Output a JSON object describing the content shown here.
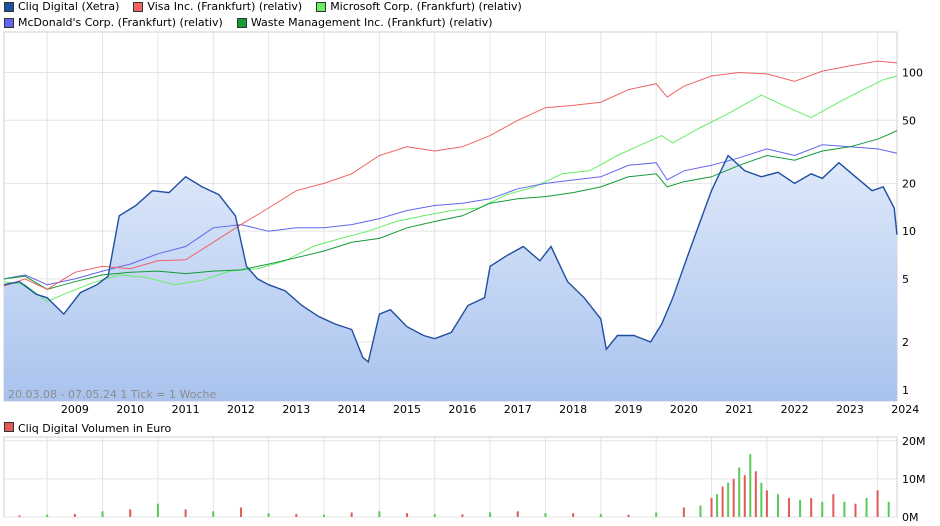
{
  "legend": [
    {
      "label": "Cliq Digital (Xetra)",
      "color": "#1f4fa0"
    },
    {
      "label": "Visa Inc. (Frankfurt) (relativ)",
      "color": "#f06464"
    },
    {
      "label": "Microsoft Corp. (Frankfurt) (relativ)",
      "color": "#66ee66"
    },
    {
      "label": "McDonald's Corp. (Frankfurt) (relativ)",
      "color": "#6464f0"
    },
    {
      "label": "Waste Management Inc. (Frankfurt) (relativ)",
      "color": "#139a39"
    }
  ],
  "range_label": "20.03.08 - 07.05.24",
  "tick_label": "1 Tick = 1 Woche",
  "volume_legend": {
    "label": "Cliq Digital Volumen in Euro",
    "color": "#e05a5a"
  },
  "chart_data": [
    {
      "type": "line",
      "scale": "log",
      "x_ticks": [
        "2009",
        "2010",
        "2011",
        "2012",
        "2013",
        "2014",
        "2015",
        "2016",
        "2017",
        "2018",
        "2019",
        "2020",
        "2021",
        "2022",
        "2023",
        "2024"
      ],
      "y_ticks": [
        1,
        2,
        5,
        10,
        20,
        50,
        100
      ],
      "ylim": [
        0.85,
        180
      ],
      "xlim": [
        2008.22,
        2024.35
      ],
      "grid": true,
      "legend_position": "top",
      "series": [
        {
          "name": "Cliq Digital (Xetra)",
          "color": "#1f4fa0",
          "fill": true,
          "x": [
            2008.22,
            2008.5,
            2008.8,
            2009.0,
            2009.3,
            2009.6,
            2009.9,
            2010.1,
            2010.3,
            2010.6,
            2010.9,
            2011.2,
            2011.5,
            2011.8,
            2012.1,
            2012.4,
            2012.6,
            2012.8,
            2013.0,
            2013.3,
            2013.6,
            2013.9,
            2014.2,
            2014.5,
            2014.7,
            2014.8,
            2015.0,
            2015.2,
            2015.5,
            2015.8,
            2016.0,
            2016.3,
            2016.6,
            2016.9,
            2017.0,
            2017.3,
            2017.6,
            2017.9,
            2018.1,
            2018.4,
            2018.7,
            2019.0,
            2019.1,
            2019.3,
            2019.6,
            2019.9,
            2020.1,
            2020.3,
            2020.6,
            2020.9,
            2021.0,
            2021.3,
            2021.6,
            2021.9,
            2022.2,
            2022.5,
            2022.8,
            2023.0,
            2023.3,
            2023.6,
            2023.9,
            2024.1,
            2024.3,
            2024.35
          ],
          "y": [
            4.6,
            4.8,
            4.0,
            3.8,
            3.0,
            4.1,
            4.6,
            5.2,
            12.5,
            14.5,
            18.0,
            17.5,
            22.0,
            19.0,
            17.0,
            12.5,
            6.0,
            5.0,
            4.6,
            4.2,
            3.4,
            2.9,
            2.6,
            2.4,
            1.6,
            1.5,
            3.0,
            3.2,
            2.5,
            2.2,
            2.1,
            2.3,
            3.4,
            3.8,
            6.0,
            7.0,
            8.0,
            6.5,
            8.0,
            4.8,
            3.8,
            2.8,
            1.8,
            2.2,
            2.2,
            2.0,
            2.6,
            3.8,
            7.5,
            14.5,
            18.0,
            30.0,
            24.0,
            22.0,
            23.5,
            20.0,
            23.0,
            21.5,
            27.0,
            22.0,
            18.0,
            19.0,
            14.0,
            9.5
          ]
        },
        {
          "name": "Visa Inc. (Frankfurt) (relativ)",
          "color": "#f06464",
          "x": [
            2008.22,
            2008.6,
            2009.0,
            2009.5,
            2010.0,
            2010.5,
            2011.0,
            2011.5,
            2012.0,
            2012.5,
            2013.0,
            2013.5,
            2014.0,
            2014.5,
            2015.0,
            2015.5,
            2016.0,
            2016.5,
            2017.0,
            2017.5,
            2018.0,
            2018.5,
            2019.0,
            2019.5,
            2020.0,
            2020.2,
            2020.5,
            2021.0,
            2021.5,
            2022.0,
            2022.5,
            2023.0,
            2023.5,
            2024.0,
            2024.35
          ],
          "y": [
            4.5,
            5.0,
            4.3,
            5.5,
            6.0,
            5.8,
            6.5,
            6.6,
            8.5,
            11.0,
            14.0,
            18.0,
            20.0,
            23.0,
            30.0,
            34.0,
            32.0,
            34.0,
            40.0,
            50.0,
            60.0,
            62.0,
            65.0,
            78.0,
            85.0,
            70.0,
            82.0,
            95.0,
            100.0,
            98.0,
            88.0,
            102.0,
            110.0,
            118.0,
            115.0
          ]
        },
        {
          "name": "Microsoft Corp. (Frankfurt) (relativ)",
          "color": "#66ee66",
          "x": [
            2008.22,
            2008.6,
            2009.0,
            2009.3,
            2009.8,
            2010.3,
            2010.8,
            2011.3,
            2011.8,
            2012.3,
            2012.8,
            2013.3,
            2013.8,
            2014.3,
            2014.8,
            2015.3,
            2015.8,
            2016.3,
            2016.8,
            2017.3,
            2017.8,
            2018.3,
            2018.8,
            2019.3,
            2019.8,
            2020.1,
            2020.3,
            2020.8,
            2021.3,
            2021.9,
            2022.3,
            2022.8,
            2023.3,
            2023.8,
            2024.1,
            2024.35
          ],
          "y": [
            4.8,
            4.6,
            3.6,
            4.0,
            4.7,
            5.3,
            5.1,
            4.6,
            4.9,
            5.6,
            5.8,
            6.5,
            8.0,
            9.0,
            10.0,
            11.5,
            12.5,
            13.5,
            14.0,
            17.0,
            19.0,
            23.0,
            24.0,
            30.0,
            36.0,
            40.0,
            36.0,
            45.0,
            55.0,
            72.0,
            62.0,
            52.0,
            65.0,
            80.0,
            90.0,
            95.0
          ]
        },
        {
          "name": "McDonald's Corp. (Frankfurt) (relativ)",
          "color": "#6464f0",
          "x": [
            2008.22,
            2008.6,
            2009.0,
            2009.5,
            2010.0,
            2010.5,
            2011.0,
            2011.5,
            2012.0,
            2012.5,
            2013.0,
            2013.5,
            2014.0,
            2014.5,
            2015.0,
            2015.5,
            2016.0,
            2016.5,
            2017.0,
            2017.5,
            2018.0,
            2018.5,
            2019.0,
            2019.5,
            2020.0,
            2020.2,
            2020.5,
            2021.0,
            2021.5,
            2022.0,
            2022.5,
            2023.0,
            2023.5,
            2024.0,
            2024.35
          ],
          "y": [
            5.0,
            5.3,
            4.6,
            5.0,
            5.6,
            6.2,
            7.2,
            8.0,
            10.5,
            11.0,
            10.0,
            10.5,
            10.5,
            11.0,
            12.0,
            13.5,
            14.5,
            15.0,
            16.0,
            18.5,
            20.0,
            21.0,
            22.0,
            26.0,
            27.0,
            21.0,
            24.0,
            26.0,
            29.0,
            33.0,
            30.0,
            35.0,
            34.0,
            33.0,
            31.0
          ]
        },
        {
          "name": "Waste Management Inc. (Frankfurt) (relativ)",
          "color": "#139a39",
          "x": [
            2008.22,
            2008.6,
            2009.0,
            2009.5,
            2010.0,
            2010.5,
            2011.0,
            2011.5,
            2012.0,
            2012.5,
            2013.0,
            2013.5,
            2014.0,
            2014.5,
            2015.0,
            2015.5,
            2016.0,
            2016.5,
            2017.0,
            2017.5,
            2018.0,
            2018.5,
            2019.0,
            2019.5,
            2020.0,
            2020.2,
            2020.5,
            2021.0,
            2021.5,
            2022.0,
            2022.5,
            2023.0,
            2023.5,
            2024.0,
            2024.35
          ],
          "y": [
            5.0,
            5.2,
            4.3,
            4.8,
            5.3,
            5.5,
            5.6,
            5.4,
            5.6,
            5.7,
            6.2,
            6.8,
            7.5,
            8.5,
            9.0,
            10.5,
            11.5,
            12.5,
            15.0,
            16.0,
            16.5,
            17.5,
            19.0,
            22.0,
            23.0,
            19.0,
            20.5,
            22.0,
            26.0,
            30.0,
            28.0,
            32.0,
            34.0,
            38.0,
            43.0
          ]
        }
      ]
    },
    {
      "type": "bar",
      "title": "Cliq Digital Volumen in Euro",
      "y_ticks": [
        "0M",
        "10M",
        "20M"
      ],
      "y_tick_values": [
        0,
        10,
        20
      ],
      "ylim": [
        0,
        21
      ],
      "xlim": [
        2008.22,
        2024.35
      ],
      "colors": [
        "#e05a5a",
        "#5ac85a"
      ],
      "x": [
        2008.5,
        2009.0,
        2009.5,
        2010.0,
        2010.5,
        2011.0,
        2011.5,
        2012.0,
        2012.5,
        2013.0,
        2013.5,
        2014.0,
        2014.5,
        2015.0,
        2015.5,
        2016.0,
        2016.5,
        2017.0,
        2017.5,
        2018.0,
        2018.5,
        2019.0,
        2019.5,
        2020.0,
        2020.5,
        2020.8,
        2021.0,
        2021.1,
        2021.2,
        2021.3,
        2021.4,
        2021.5,
        2021.6,
        2021.7,
        2021.8,
        2021.9,
        2022.0,
        2022.2,
        2022.4,
        2022.6,
        2022.8,
        2023.0,
        2023.2,
        2023.4,
        2023.6,
        2023.8,
        2024.0,
        2024.2
      ],
      "values": [
        0.4,
        0.6,
        0.8,
        1.5,
        2.0,
        3.5,
        2.0,
        1.5,
        2.5,
        1.0,
        0.8,
        0.6,
        1.2,
        1.5,
        1.0,
        0.8,
        0.7,
        1.2,
        1.5,
        1.0,
        1.0,
        0.8,
        0.6,
        1.2,
        2.5,
        3.0,
        5.0,
        6.0,
        8.0,
        9.0,
        10.0,
        13.0,
        11.0,
        16.5,
        12.0,
        9.0,
        7.0,
        6.0,
        5.0,
        4.5,
        5.0,
        4.0,
        6.0,
        4.0,
        3.5,
        5.0,
        7.0,
        4.0
      ]
    }
  ]
}
